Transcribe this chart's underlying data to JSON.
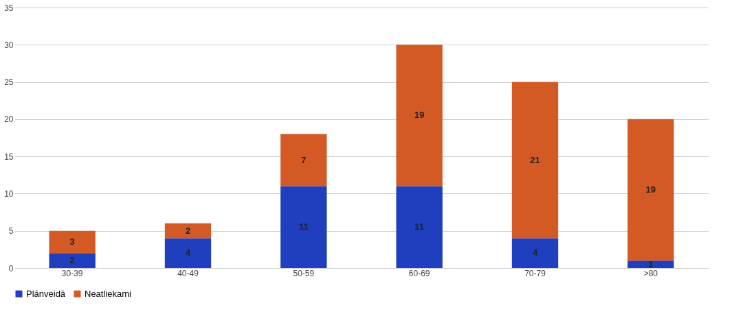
{
  "chart_data": {
    "type": "bar",
    "stacked": true,
    "categories": [
      "30-39",
      "40-49",
      "50-59",
      "60-69",
      "70-79",
      ">80"
    ],
    "series": [
      {
        "name": "Plānveidā",
        "color": "#1f3fbf",
        "values": [
          2,
          4,
          11,
          11,
          4,
          1
        ]
      },
      {
        "name": "Neatliekami",
        "color": "#d35a25",
        "values": [
          3,
          2,
          7,
          19,
          21,
          19
        ]
      }
    ],
    "ylim": [
      0,
      35
    ],
    "yticks": [
      0,
      5,
      10,
      15,
      20,
      25,
      30,
      35
    ],
    "grid": "y",
    "legend": "bottom",
    "data_labels": true
  }
}
